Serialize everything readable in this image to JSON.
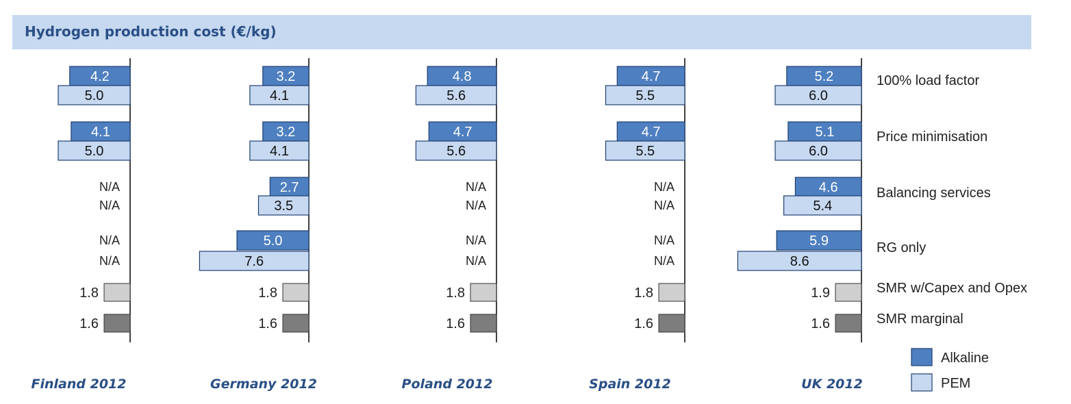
{
  "chart_data": {
    "type": "bar",
    "orientation": "horizontal",
    "title": "Hydrogen production cost (€/kg)",
    "categories": [
      "100% load factor",
      "Price minimisation",
      "Balancing services",
      "RG only",
      "SMR w/Capex and Opex",
      "SMR marginal"
    ],
    "na_label": "N/A",
    "series": [
      {
        "name": "Alkaline",
        "color": "#4e7fc0"
      },
      {
        "name": "PEM",
        "color": "#c7d9f1"
      }
    ],
    "smr_colors": {
      "SMR w/Capex and Opex": "#cfcfcf",
      "SMR marginal": "#7d7d7d"
    },
    "legend_position": "bottom-right",
    "panels": [
      {
        "name": "Finland 2012",
        "alkaline": [
          4.2,
          4.1,
          null,
          null
        ],
        "pem": [
          5.0,
          5.0,
          null,
          null
        ],
        "smr_capex_opex": 1.8,
        "smr_marginal": 1.6,
        "labels": {
          "alkaline": [
            "4.2",
            "4.1",
            "N/A",
            "N/A"
          ],
          "pem": [
            "5.0",
            "5.0",
            "N/A",
            "N/A"
          ],
          "smr_capex_opex": "1.8",
          "smr_marginal": "1.6"
        }
      },
      {
        "name": "Germany 2012",
        "alkaline": [
          3.2,
          3.2,
          2.7,
          5.0
        ],
        "pem": [
          4.1,
          4.1,
          3.5,
          7.6
        ],
        "smr_capex_opex": 1.8,
        "smr_marginal": 1.6,
        "labels": {
          "alkaline": [
            "3.2",
            "3.2",
            "2.7",
            "5.0"
          ],
          "pem": [
            "4.1",
            "4.1",
            "3.5",
            "7.6"
          ],
          "smr_capex_opex": "1.8",
          "smr_marginal": "1.6"
        }
      },
      {
        "name": "Poland 2012",
        "alkaline": [
          4.8,
          4.7,
          null,
          null
        ],
        "pem": [
          5.6,
          5.6,
          null,
          null
        ],
        "smr_capex_opex": 1.8,
        "smr_marginal": 1.6,
        "labels": {
          "alkaline": [
            "4.8",
            "4.7",
            "N/A",
            "N/A"
          ],
          "pem": [
            "5.6",
            "5.6",
            "N/A",
            "N/A"
          ],
          "smr_capex_opex": "1.8",
          "smr_marginal": "1.6"
        }
      },
      {
        "name": "Spain 2012",
        "alkaline": [
          4.7,
          4.7,
          null,
          null
        ],
        "pem": [
          5.5,
          5.5,
          null,
          null
        ],
        "smr_capex_opex": 1.8,
        "smr_marginal": 1.6,
        "labels": {
          "alkaline": [
            "4.7",
            "4.7",
            "N/A",
            "N/A"
          ],
          "pem": [
            "5.5",
            "5.5",
            "N/A",
            "N/A"
          ],
          "smr_capex_opex": "1.8",
          "smr_marginal": "1.6"
        }
      },
      {
        "name": "UK 2012",
        "alkaline": [
          5.2,
          5.1,
          4.6,
          5.9
        ],
        "pem": [
          6.0,
          6.0,
          5.4,
          8.6
        ],
        "smr_capex_opex": 1.9,
        "smr_marginal": 1.6,
        "labels": {
          "alkaline": [
            "5.2",
            "5.1",
            "4.6",
            "5.9"
          ],
          "pem": [
            "6.0",
            "6.0",
            "5.4",
            "8.6"
          ],
          "smr_capex_opex": "1.9",
          "smr_marginal": "1.6"
        }
      }
    ]
  }
}
